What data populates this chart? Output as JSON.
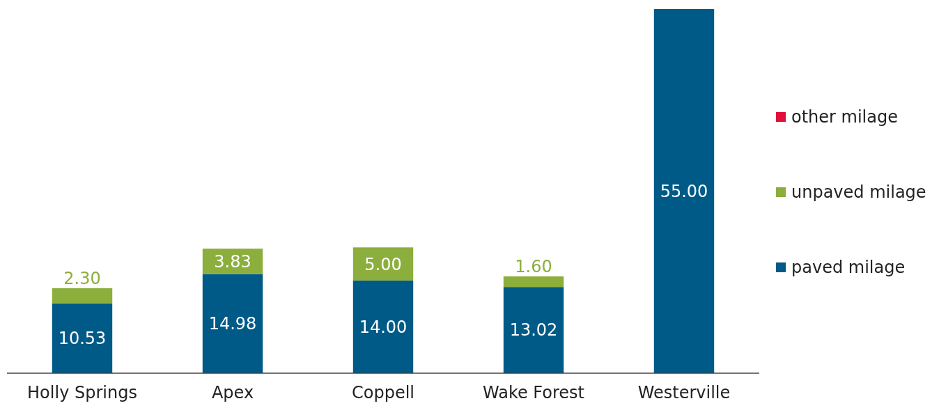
{
  "chart_data": {
    "type": "bar",
    "stacked": true,
    "legend": "right",
    "categories": [
      "Holly Springs",
      "Apex",
      "Coppell",
      "Wake Forest",
      "Westerville"
    ],
    "series": [
      {
        "name": "paved milage",
        "color": "#005a87",
        "values": [
          10.53,
          14.98,
          14.0,
          13.02,
          55.0
        ],
        "value_labels": [
          "10.53",
          "14.98",
          "14.00",
          "13.02",
          "55.00"
        ]
      },
      {
        "name": "unpaved milage",
        "color": "#8cae3c",
        "values": [
          2.3,
          3.83,
          5.0,
          1.6,
          null
        ],
        "value_labels": [
          "2.30",
          "3.83",
          "5.00",
          "1.60",
          null
        ]
      },
      {
        "name": "other milage",
        "color": "#e0103c",
        "values": [
          null,
          null,
          null,
          null,
          null
        ]
      }
    ]
  }
}
